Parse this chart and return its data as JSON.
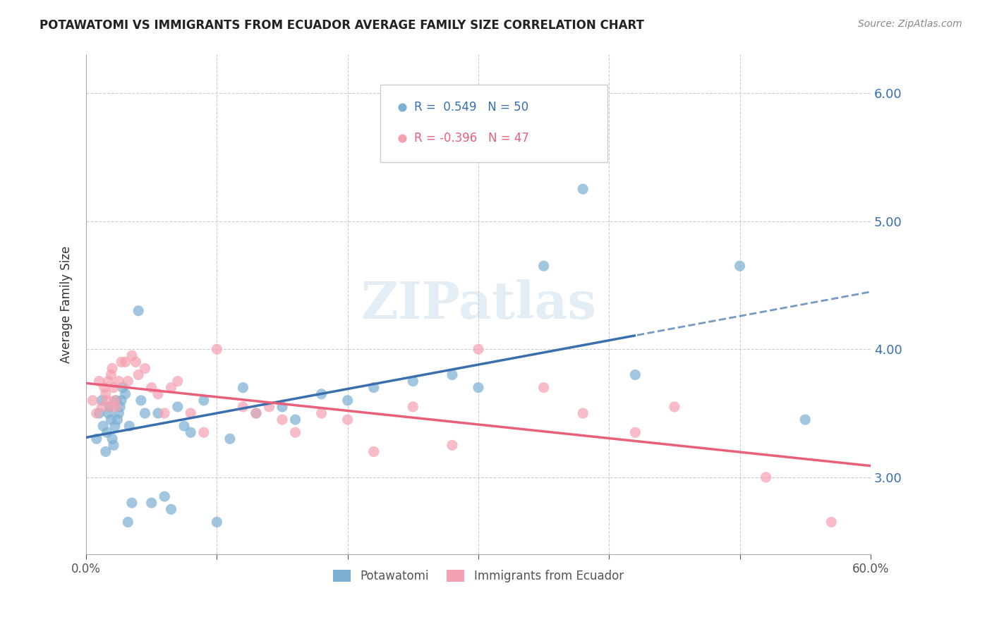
{
  "title": "POTAWATOMI VS IMMIGRANTS FROM ECUADOR AVERAGE FAMILY SIZE CORRELATION CHART",
  "source": "Source: ZipAtlas.com",
  "ylabel": "Average Family Size",
  "xlim": [
    0.0,
    0.6
  ],
  "ylim": [
    2.4,
    6.3
  ],
  "blue_R": 0.549,
  "blue_N": 50,
  "pink_R": -0.396,
  "pink_N": 47,
  "blue_color": "#7bafd4",
  "pink_color": "#f4a0b0",
  "blue_line_color": "#3a6fad",
  "pink_line_color": "#e8607a",
  "watermark": "ZIPatlas",
  "legend_label_blue": "Potawatomi",
  "legend_label_pink": "Immigrants from Ecuador",
  "blue_scatter_x": [
    0.008,
    0.01,
    0.012,
    0.013,
    0.015,
    0.016,
    0.017,
    0.018,
    0.019,
    0.02,
    0.021,
    0.022,
    0.023,
    0.024,
    0.025,
    0.026,
    0.027,
    0.028,
    0.03,
    0.032,
    0.033,
    0.035,
    0.04,
    0.042,
    0.045,
    0.05,
    0.055,
    0.06,
    0.065,
    0.07,
    0.075,
    0.08,
    0.09,
    0.1,
    0.11,
    0.12,
    0.13,
    0.15,
    0.16,
    0.18,
    0.2,
    0.22,
    0.25,
    0.28,
    0.3,
    0.35,
    0.38,
    0.42,
    0.5,
    0.55
  ],
  "blue_scatter_y": [
    3.3,
    3.5,
    3.6,
    3.4,
    3.2,
    3.35,
    3.5,
    3.55,
    3.45,
    3.3,
    3.25,
    3.4,
    3.6,
    3.45,
    3.5,
    3.55,
    3.6,
    3.7,
    3.65,
    2.65,
    3.4,
    2.8,
    4.3,
    3.6,
    3.5,
    2.8,
    3.5,
    2.85,
    2.75,
    3.55,
    3.4,
    3.35,
    3.6,
    2.65,
    3.3,
    3.7,
    3.5,
    3.55,
    3.45,
    3.65,
    3.6,
    3.7,
    3.75,
    3.8,
    3.7,
    4.65,
    5.25,
    3.8,
    4.65,
    3.45
  ],
  "pink_scatter_x": [
    0.005,
    0.008,
    0.01,
    0.012,
    0.014,
    0.015,
    0.016,
    0.017,
    0.018,
    0.019,
    0.02,
    0.021,
    0.022,
    0.023,
    0.025,
    0.027,
    0.03,
    0.032,
    0.035,
    0.038,
    0.04,
    0.045,
    0.05,
    0.055,
    0.06,
    0.065,
    0.07,
    0.08,
    0.09,
    0.1,
    0.12,
    0.13,
    0.14,
    0.15,
    0.16,
    0.18,
    0.2,
    0.22,
    0.25,
    0.28,
    0.3,
    0.35,
    0.38,
    0.42,
    0.45,
    0.52,
    0.57
  ],
  "pink_scatter_y": [
    3.6,
    3.5,
    3.75,
    3.55,
    3.7,
    3.65,
    3.6,
    3.75,
    3.55,
    3.8,
    3.85,
    3.7,
    3.6,
    3.55,
    3.75,
    3.9,
    3.9,
    3.75,
    3.95,
    3.9,
    3.8,
    3.85,
    3.7,
    3.65,
    3.5,
    3.7,
    3.75,
    3.5,
    3.35,
    4.0,
    3.55,
    3.5,
    3.55,
    3.45,
    3.35,
    3.5,
    3.45,
    3.2,
    3.55,
    3.25,
    4.0,
    3.7,
    3.5,
    3.35,
    3.55,
    3.0,
    2.65
  ],
  "split_blue": 0.42,
  "yticks": [
    3.0,
    4.0,
    5.0,
    6.0
  ],
  "ytick_labels": [
    "3.00",
    "4.00",
    "5.00",
    "6.00"
  ],
  "xtick_vals": [
    0.0,
    0.1,
    0.2,
    0.3,
    0.4,
    0.5,
    0.6
  ],
  "xtick_labels": [
    "0.0%",
    "",
    "",
    "",
    "",
    "",
    "60.0%"
  ]
}
